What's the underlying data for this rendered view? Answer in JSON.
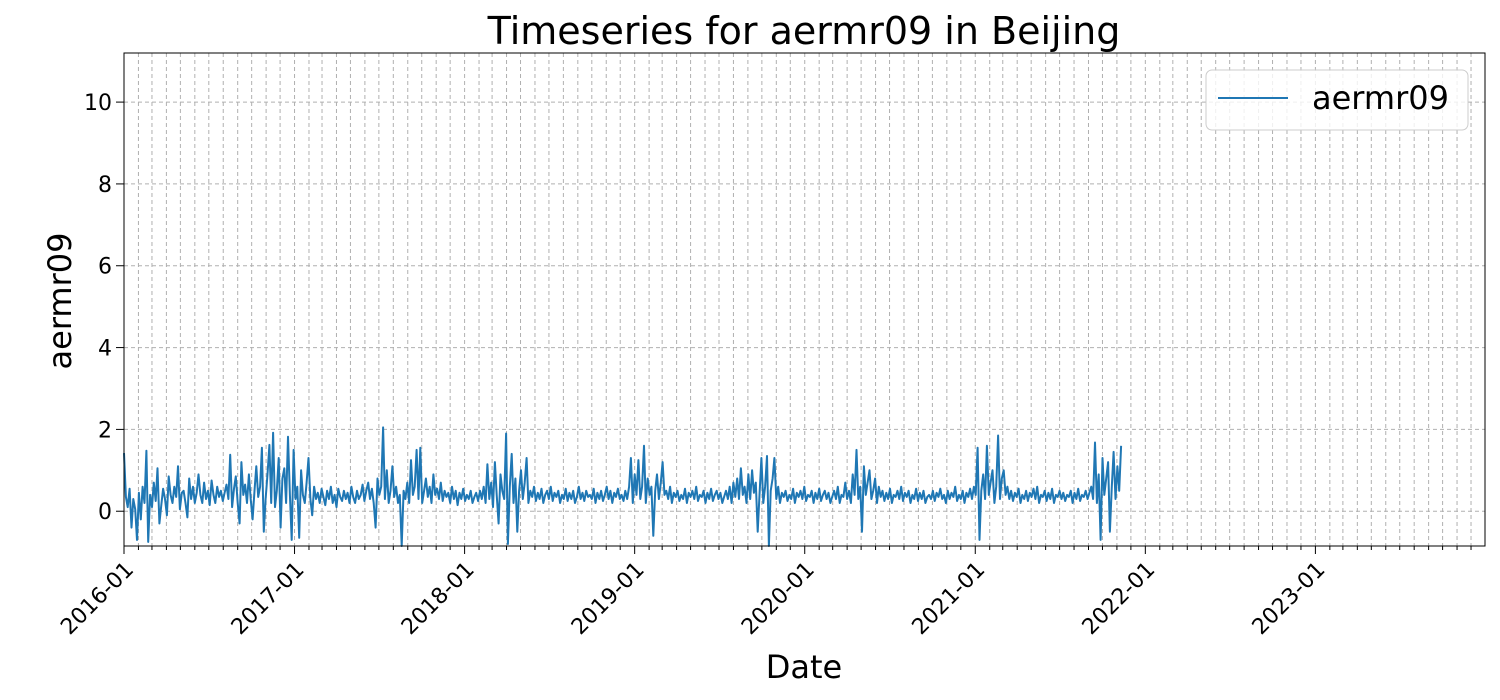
{
  "chart_data": {
    "type": "line",
    "title": "Timeseries for aermr09 in Beijing",
    "xlabel": "Date",
    "ylabel": "aermr09",
    "x_range": [
      "2016-01-01",
      "2023-12-31"
    ],
    "ylim": [
      -0.85,
      11.2
    ],
    "x_ticks": [
      "2016-01",
      "2017-01",
      "2018-01",
      "2019-01",
      "2020-01",
      "2021-01",
      "2022-01",
      "2023-01"
    ],
    "y_ticks": [
      0,
      2,
      4,
      6,
      8,
      10
    ],
    "grid": true,
    "legend_position": "top-right",
    "series": [
      {
        "name": "aermr09",
        "color": "#1f77b4",
        "x_start": "2016-01-01",
        "x_step_days": 4,
        "values": [
          1.42,
          0.35,
          0.1,
          0.55,
          -0.4,
          0.3,
          0.05,
          -0.7,
          0.45,
          -0.2,
          0.6,
          0.2,
          1.48,
          -0.75,
          0.4,
          0.1,
          0.7,
          0.25,
          1.05,
          -0.3,
          0.15,
          0.55,
          0.3,
          -0.1,
          0.85,
          0.4,
          0.2,
          0.6,
          0.35,
          1.1,
          0.05,
          0.45,
          0.5,
          0.2,
          -0.15,
          0.8,
          0.3,
          0.6,
          0.2,
          0.45,
          0.9,
          0.4,
          0.2,
          0.7,
          0.3,
          0.5,
          0.15,
          0.75,
          0.4,
          0.2,
          0.6,
          0.35,
          0.5,
          0.25,
          0.45,
          0.65,
          0.3,
          1.38,
          0.1,
          0.55,
          0.85,
          0.2,
          -0.3,
          1.2,
          0.4,
          0.65,
          0.2,
          0.9,
          0.3,
          -0.2,
          0.5,
          1.1,
          0.35,
          0.6,
          1.55,
          -0.5,
          0.3,
          0.9,
          1.62,
          0.2,
          1.92,
          0.1,
          0.5,
          1.3,
          -0.4,
          0.8,
          1.05,
          0.2,
          1.82,
          0.4,
          -0.7,
          1.5,
          0.3,
          0.6,
          -0.65,
          1.0,
          0.4,
          0.2,
          0.7,
          1.3,
          0.3,
          -0.1,
          0.6,
          0.3,
          0.45,
          0.2,
          0.55,
          0.35,
          0.15,
          0.5,
          0.3,
          0.6,
          0.2,
          0.4,
          0.1,
          0.55,
          0.35,
          0.25,
          0.5,
          0.3,
          0.45,
          0.2,
          0.6,
          0.35,
          0.2,
          0.5,
          0.3,
          0.4,
          0.65,
          0.25,
          0.5,
          0.7,
          0.3,
          0.55,
          0.2,
          -0.4,
          0.8,
          0.4,
          0.6,
          2.05,
          0.3,
          1.0,
          0.2,
          0.5,
          1.1,
          0.35,
          0.6,
          0.2,
          0.4,
          -0.85,
          0.5,
          0.3,
          0.7,
          0.2,
          1.25,
          0.4,
          0.6,
          1.5,
          0.3,
          1.55,
          0.2,
          0.5,
          0.8,
          0.35,
          0.6,
          0.2,
          0.9,
          0.4,
          0.55,
          0.3,
          0.7,
          0.25,
          0.5,
          0.35,
          0.45,
          0.2,
          0.6,
          0.3,
          0.5,
          0.15,
          0.45,
          0.3,
          0.55,
          0.25,
          0.4,
          0.3,
          0.5,
          0.2,
          0.35,
          0.45,
          0.25,
          0.5,
          0.3,
          0.6,
          0.2,
          1.15,
          0.3,
          0.7,
          0.1,
          1.2,
          0.4,
          -0.3,
          0.9,
          0.5,
          0.3,
          1.9,
          -0.8,
          0.6,
          1.4,
          0.2,
          0.8,
          -0.5,
          0.5,
          1.0,
          0.3,
          0.7,
          1.3,
          0.2,
          0.5,
          0.35,
          0.6,
          0.25,
          0.45,
          0.3,
          0.55,
          0.2,
          0.4,
          0.5,
          0.3,
          0.6,
          0.25,
          0.45,
          0.35,
          0.5,
          0.2,
          0.4,
          0.3,
          0.55,
          0.25,
          0.45,
          0.3,
          0.5,
          0.2,
          0.35,
          0.6,
          0.3,
          0.45,
          0.25,
          0.5,
          0.35,
          0.4,
          0.3,
          0.55,
          0.2,
          0.45,
          0.3,
          0.5,
          0.25,
          0.4,
          0.6,
          0.3,
          0.5,
          0.2,
          0.45,
          0.35,
          0.55,
          0.3,
          0.4,
          0.25,
          0.5,
          0.3,
          0.6,
          1.3,
          0.2,
          0.9,
          0.4,
          1.25,
          0.3,
          0.6,
          1.6,
          0.2,
          0.8,
          0.4,
          0.6,
          -0.6,
          0.5,
          0.9,
          0.3,
          0.7,
          1.2,
          0.4,
          0.5,
          0.3,
          0.6,
          0.2,
          0.45,
          0.35,
          0.5,
          0.25,
          0.4,
          0.3,
          0.55,
          0.2,
          0.45,
          0.35,
          0.5,
          0.3,
          0.6,
          0.25,
          0.4,
          0.35,
          0.5,
          0.2,
          0.45,
          0.3,
          0.55,
          0.25,
          0.4,
          0.5,
          0.3,
          0.45,
          0.2,
          0.35,
          0.5,
          0.3,
          0.6,
          0.2,
          0.7,
          0.35,
          0.8,
          0.3,
          1.05,
          0.4,
          0.6,
          0.2,
          0.9,
          0.3,
          1.0,
          0.45,
          0.7,
          -0.5,
          0.4,
          1.3,
          0.2,
          0.6,
          1.35,
          -0.85,
          0.5,
          0.8,
          1.3,
          0.3,
          0.6,
          0.2,
          0.45,
          0.35,
          0.5,
          0.25,
          0.4,
          0.3,
          0.55,
          0.2,
          0.45,
          0.35,
          0.5,
          0.3,
          0.6,
          0.25,
          0.4,
          0.35,
          0.5,
          0.2,
          0.45,
          0.3,
          0.55,
          0.25,
          0.4,
          0.5,
          0.3,
          0.45,
          0.2,
          0.35,
          0.5,
          0.3,
          0.6,
          0.2,
          0.4,
          0.35,
          0.7,
          0.3,
          0.5,
          0.2,
          0.9,
          0.4,
          1.5,
          0.3,
          0.6,
          -0.5,
          1.1,
          0.4,
          0.7,
          1.0,
          0.3,
          0.5,
          0.8,
          0.2,
          0.6,
          0.35,
          0.5,
          0.25,
          0.45,
          0.3,
          0.55,
          0.2,
          0.4,
          0.35,
          0.5,
          0.3,
          0.6,
          0.25,
          0.45,
          0.35,
          0.5,
          0.2,
          0.4,
          0.3,
          0.55,
          0.25,
          0.45,
          0.3,
          0.5,
          0.2,
          0.35,
          0.4,
          0.3,
          0.5,
          0.25,
          0.45,
          0.35,
          0.55,
          0.3,
          0.4,
          0.2,
          0.5,
          0.3,
          0.45,
          0.35,
          0.6,
          0.25,
          0.4,
          0.3,
          0.5,
          0.2,
          0.45,
          0.35,
          0.55,
          0.3,
          0.6,
          0.4,
          1.55,
          -0.7,
          0.5,
          0.9,
          0.3,
          1.6,
          0.4,
          0.7,
          1.0,
          0.2,
          0.6,
          1.85,
          0.3,
          0.8,
          1.0,
          0.4,
          0.6,
          0.3,
          0.5,
          0.25,
          0.45,
          0.35,
          0.55,
          0.2,
          0.4,
          0.3,
          0.5,
          0.25,
          0.45,
          0.35,
          0.55,
          0.3,
          0.6,
          0.2,
          0.4,
          0.35,
          0.5,
          0.25,
          0.45,
          0.3,
          0.55,
          0.2,
          0.4,
          0.35,
          0.5,
          0.3,
          0.45,
          0.25,
          0.4,
          0.35,
          0.5,
          0.2,
          0.45,
          0.3,
          0.55,
          0.25,
          0.4,
          0.35,
          0.5,
          0.3,
          0.45,
          0.6,
          0.3,
          1.68,
          0.2,
          0.9,
          -0.7,
          1.3,
          0.4,
          0.8,
          1.2,
          -0.5,
          0.6,
          1.45,
          0.3,
          1.1,
          0.5,
          1.6
        ]
      }
    ]
  }
}
